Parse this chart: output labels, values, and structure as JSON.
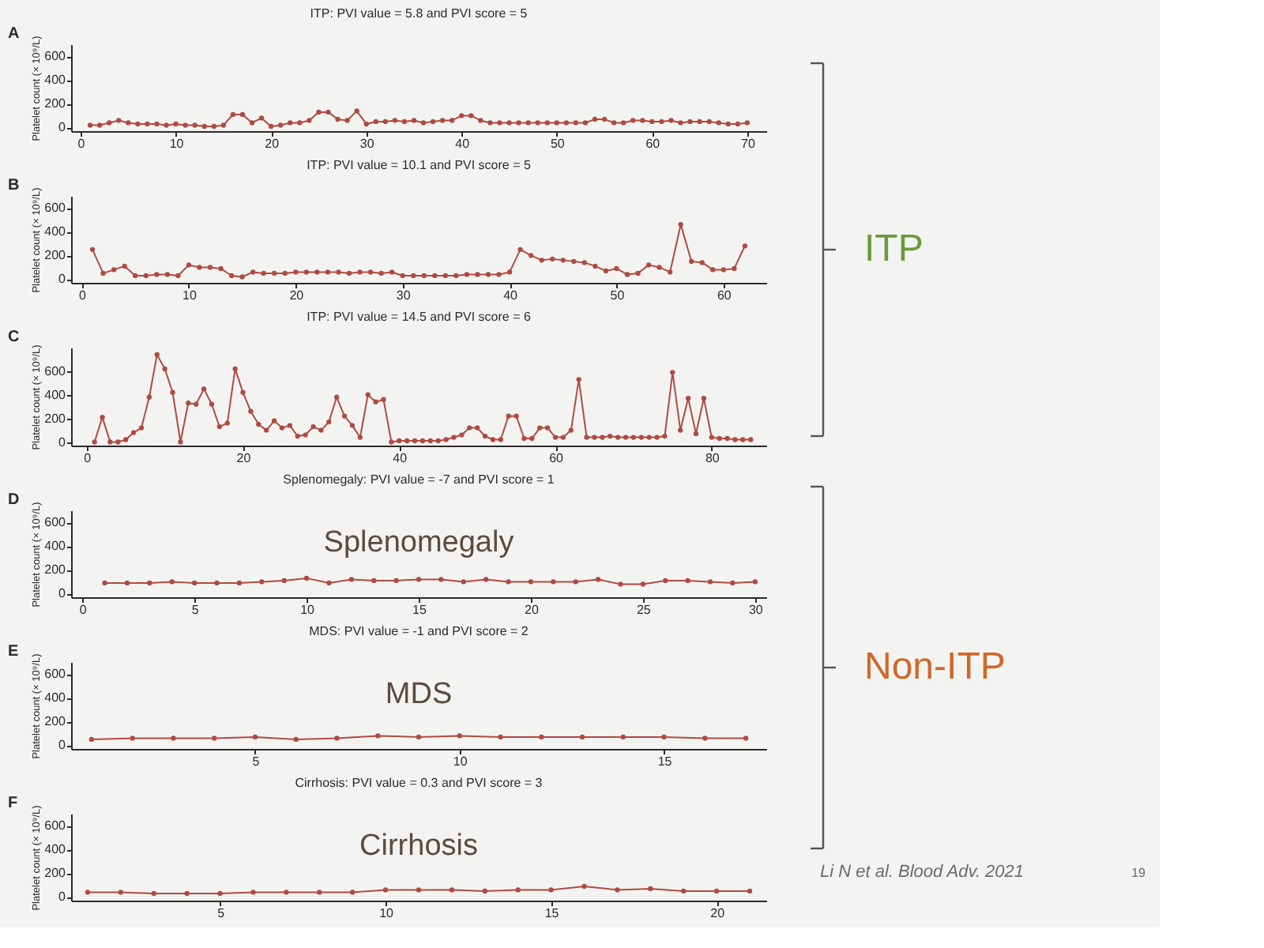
{
  "chart_data": [
    {
      "type": "line",
      "title": "ITP: PVI value = 5.8 and PVI score = 5",
      "ylabel": "Platelet count (× 10⁹/L)",
      "annotations": [
        "A"
      ],
      "x": [
        1,
        2,
        3,
        4,
        5,
        6,
        7,
        8,
        9,
        10,
        11,
        12,
        13,
        14,
        15,
        16,
        17,
        18,
        19,
        20,
        21,
        22,
        23,
        24,
        25,
        26,
        27,
        28,
        29,
        30,
        31,
        32,
        33,
        34,
        35,
        36,
        37,
        38,
        39,
        40,
        41,
        42,
        43,
        44,
        45,
        46,
        47,
        48,
        49,
        50,
        51,
        52,
        53,
        54,
        55,
        56,
        57,
        58,
        59,
        60,
        61,
        62,
        63,
        64,
        65,
        66,
        67,
        68,
        69,
        70
      ],
      "series": [
        {
          "color": "#b04a42",
          "values": [
            20,
            20,
            40,
            60,
            40,
            30,
            30,
            30,
            20,
            30,
            20,
            20,
            10,
            10,
            20,
            110,
            110,
            40,
            80,
            10,
            20,
            40,
            40,
            60,
            130,
            130,
            70,
            60,
            140,
            30,
            50,
            50,
            60,
            50,
            60,
            40,
            50,
            60,
            60,
            100,
            100,
            60,
            40,
            40,
            40,
            40,
            40,
            40,
            40,
            40,
            40,
            40,
            40,
            70,
            70,
            40,
            40,
            60,
            60,
            50,
            50,
            60,
            40,
            50,
            50,
            50,
            40,
            30,
            30,
            40
          ]
        }
      ],
      "xlim": [
        -1,
        72
      ],
      "xticks": [
        0,
        10,
        20,
        30,
        40,
        50,
        60,
        70
      ],
      "ylim": [
        -30,
        700
      ],
      "yticks": [
        0,
        200,
        400,
        600
      ],
      "marker": "circle",
      "line_style": "solid"
    },
    {
      "type": "line",
      "title": "ITP: PVI value = 10.1 and PVI score = 5",
      "ylabel": "Platelet count (× 10⁹/L)",
      "annotations": [
        "B"
      ],
      "x": [
        1,
        2,
        3,
        4,
        5,
        6,
        7,
        8,
        9,
        10,
        11,
        12,
        13,
        14,
        15,
        16,
        17,
        18,
        19,
        20,
        21,
        22,
        23,
        24,
        25,
        26,
        27,
        28,
        29,
        30,
        31,
        32,
        33,
        34,
        35,
        36,
        37,
        38,
        39,
        40,
        41,
        42,
        43,
        44,
        45,
        46,
        47,
        48,
        49,
        50,
        51,
        52,
        53,
        54,
        55,
        56,
        57,
        58,
        59,
        60,
        61,
        62
      ],
      "series": [
        {
          "color": "#b04a42",
          "values": [
            250,
            50,
            80,
            110,
            30,
            30,
            40,
            40,
            30,
            120,
            100,
            100,
            90,
            30,
            20,
            60,
            50,
            50,
            50,
            60,
            60,
            60,
            60,
            60,
            50,
            60,
            60,
            50,
            60,
            30,
            30,
            30,
            30,
            30,
            30,
            40,
            40,
            40,
            40,
            60,
            250,
            200,
            160,
            170,
            160,
            150,
            140,
            110,
            70,
            90,
            40,
            50,
            120,
            100,
            60,
            460,
            150,
            140,
            80,
            80,
            90,
            280
          ]
        }
      ],
      "xlim": [
        -1,
        64
      ],
      "xticks": [
        0,
        10,
        20,
        30,
        40,
        50,
        60
      ],
      "ylim": [
        -30,
        700
      ],
      "yticks": [
        0,
        200,
        400,
        600
      ],
      "marker": "circle",
      "line_style": "solid"
    },
    {
      "type": "line",
      "title": "ITP: PVI value = 14.5 and PVI score = 6",
      "ylabel": "Platelet count (× 10⁹/L)",
      "annotations": [
        "C"
      ],
      "x": [
        1,
        2,
        3,
        4,
        5,
        6,
        7,
        8,
        9,
        10,
        11,
        12,
        13,
        14,
        15,
        16,
        17,
        18,
        19,
        20,
        21,
        22,
        23,
        24,
        25,
        26,
        27,
        28,
        29,
        30,
        31,
        32,
        33,
        34,
        35,
        36,
        37,
        38,
        39,
        40,
        41,
        42,
        43,
        44,
        45,
        46,
        47,
        48,
        49,
        50,
        51,
        52,
        53,
        54,
        55,
        56,
        57,
        58,
        59,
        60,
        61,
        62,
        63,
        64,
        65,
        66,
        67,
        68,
        69,
        70,
        71,
        72,
        73,
        74,
        75,
        76,
        77,
        78,
        79,
        80,
        81,
        82,
        83,
        84,
        85
      ],
      "series": [
        {
          "color": "#b04a42",
          "values": [
            0,
            210,
            0,
            0,
            20,
            80,
            120,
            380,
            740,
            620,
            420,
            0,
            330,
            320,
            450,
            320,
            130,
            160,
            620,
            420,
            260,
            150,
            100,
            180,
            120,
            140,
            50,
            60,
            130,
            100,
            170,
            380,
            220,
            140,
            40,
            400,
            340,
            360,
            0,
            10,
            10,
            10,
            10,
            10,
            10,
            20,
            40,
            60,
            120,
            120,
            50,
            20,
            20,
            220,
            220,
            30,
            30,
            120,
            120,
            40,
            40,
            100,
            530,
            40,
            40,
            40,
            50,
            40,
            40,
            40,
            40,
            40,
            40,
            50,
            590,
            100,
            370,
            70,
            370,
            40,
            30,
            30,
            20,
            20,
            20
          ]
        }
      ],
      "xlim": [
        -2,
        87
      ],
      "xticks": [
        0,
        20,
        40,
        60,
        80
      ],
      "ylim": [
        -30,
        800
      ],
      "yticks": [
        0,
        200,
        400,
        600
      ],
      "marker": "circle",
      "line_style": "solid"
    },
    {
      "type": "line",
      "title": "Splenomegaly: PVI value = -7 and PVI score = 1",
      "ylabel": "Platelet count (× 10⁹/L)",
      "annotations": [
        "D",
        "Splenomegaly"
      ],
      "x": [
        1,
        2,
        3,
        4,
        5,
        6,
        7,
        8,
        9,
        10,
        11,
        12,
        13,
        14,
        15,
        16,
        17,
        18,
        19,
        20,
        21,
        22,
        23,
        24,
        25,
        26,
        27,
        28,
        29,
        30
      ],
      "series": [
        {
          "color": "#b04a42",
          "values": [
            90,
            90,
            90,
            100,
            90,
            90,
            90,
            100,
            110,
            130,
            90,
            120,
            110,
            110,
            120,
            120,
            100,
            120,
            100,
            100,
            100,
            100,
            120,
            80,
            80,
            110,
            110,
            100,
            90,
            100
          ]
        }
      ],
      "xlim": [
        -0.5,
        30.5
      ],
      "xticks": [
        0,
        5,
        10,
        15,
        20,
        25,
        30
      ],
      "ylim": [
        -30,
        700
      ],
      "yticks": [
        0,
        200,
        400,
        600
      ],
      "marker": "circle",
      "line_style": "solid"
    },
    {
      "type": "line",
      "title": "MDS: PVI value = -1 and PVI score = 2",
      "ylabel": "Platelet count (× 10⁹/L)",
      "annotations": [
        "E",
        "MDS"
      ],
      "x": [
        1,
        2,
        3,
        4,
        5,
        6,
        7,
        8,
        9,
        10,
        11,
        12,
        13,
        14,
        15,
        16,
        17
      ],
      "series": [
        {
          "color": "#b04a42",
          "values": [
            50,
            60,
            60,
            60,
            70,
            50,
            60,
            80,
            70,
            80,
            70,
            70,
            70,
            70,
            70,
            60,
            60
          ]
        }
      ],
      "xlim": [
        0.5,
        17.5
      ],
      "xticks": [
        5,
        10,
        15
      ],
      "ylim": [
        -30,
        700
      ],
      "yticks": [
        0,
        200,
        400,
        600
      ],
      "marker": "circle",
      "line_style": "solid"
    },
    {
      "type": "line",
      "title": "Cirrhosis: PVI value = 0.3 and PVI score = 3",
      "ylabel": "Platelet count (× 10⁹/L)",
      "annotations": [
        "F",
        "Cirrhosis"
      ],
      "x": [
        1,
        2,
        3,
        4,
        5,
        6,
        7,
        8,
        9,
        10,
        11,
        12,
        13,
        14,
        15,
        16,
        17,
        18,
        19,
        20,
        21
      ],
      "series": [
        {
          "color": "#b04a42",
          "values": [
            40,
            40,
            30,
            30,
            30,
            40,
            40,
            40,
            40,
            60,
            60,
            60,
            50,
            60,
            60,
            90,
            60,
            70,
            50,
            50,
            50
          ]
        }
      ],
      "xlim": [
        0.5,
        21.5
      ],
      "xticks": [
        5,
        10,
        15,
        20
      ],
      "ylim": [
        -30,
        700
      ],
      "yticks": [
        0,
        200,
        400,
        600
      ],
      "marker": "circle",
      "line_style": "solid"
    },
    {
      "type": "other",
      "annotations": [
        "ITP",
        "Non-ITP",
        "Li N et al. Blood Adv. 2021",
        "19"
      ]
    }
  ]
}
